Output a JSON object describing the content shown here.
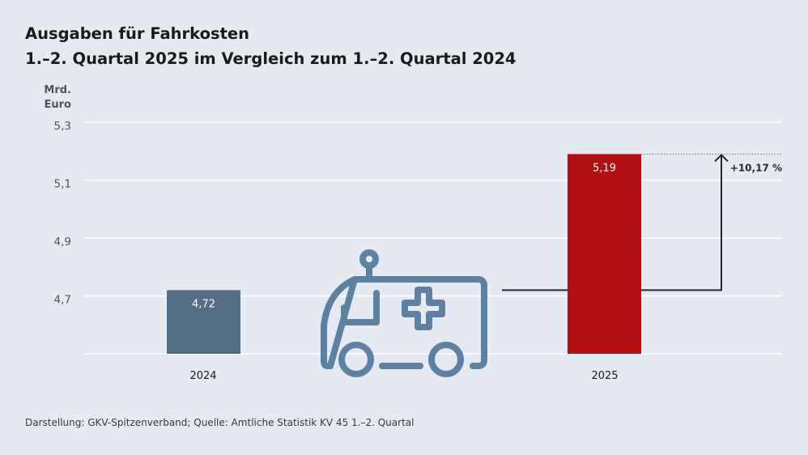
{
  "header": {
    "title_line1": "Ausgaben für Fahrkosten",
    "title_line2": "1.–2. Quartal 2025 im Vergleich zum 1.–2. Quartal 2024"
  },
  "axis": {
    "unit_line1": "Mrd.",
    "unit_line2": "Euro"
  },
  "source": "Darstellung: GKV-Spitzenverband; Quelle: Amtliche Statistik KV 45 1.–2. Quartal",
  "icon": "ambulance-icon",
  "change_label": "+10,17 %",
  "colors": {
    "bar_2024": "#546e86",
    "bar_2025": "#b10f11",
    "icon": "#5d81a0",
    "arrow": "#1e2a38"
  },
  "chart_data": {
    "type": "bar",
    "title": "Ausgaben für Fahrkosten",
    "subtitle": "1.–2. Quartal 2025 im Vergleich zum 1.–2. Quartal 2024",
    "ylabel": "Mrd. Euro",
    "categories": [
      "2024",
      "2025"
    ],
    "values": [
      4.72,
      5.19
    ],
    "value_labels": [
      "4,72",
      "5,19"
    ],
    "ylim": [
      4.5,
      5.3
    ],
    "yticks": [
      4.7,
      4.9,
      5.1,
      5.3
    ],
    "ytick_labels": [
      "4,7",
      "4,9",
      "5,1",
      "5,3"
    ],
    "grid": true,
    "annotation": "+10,17 %"
  }
}
